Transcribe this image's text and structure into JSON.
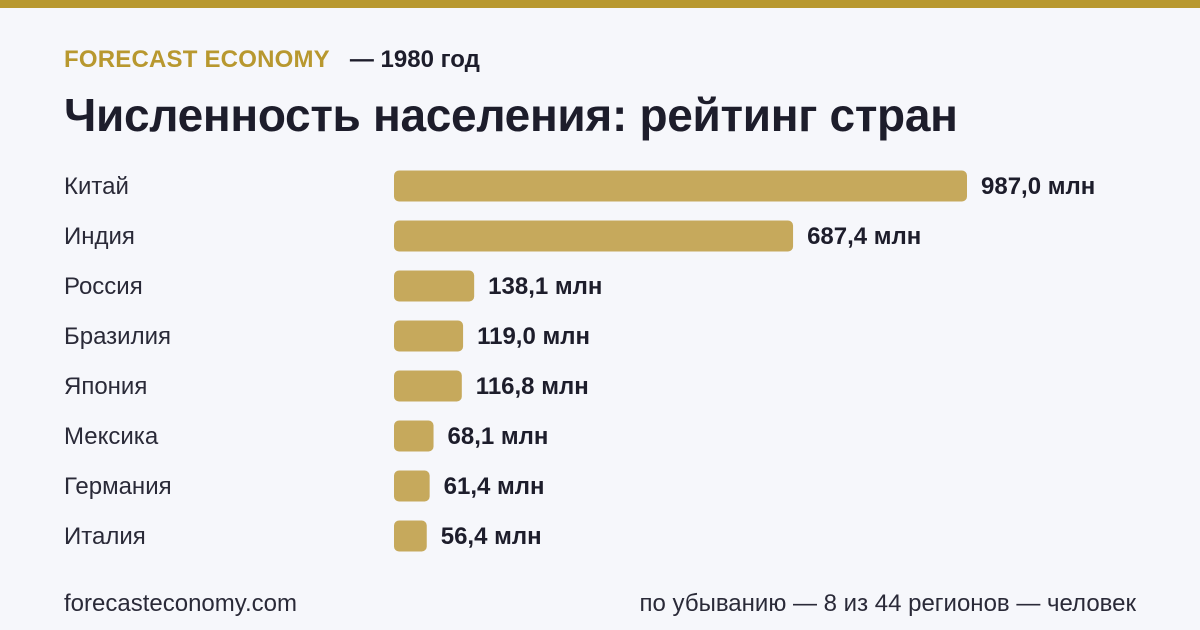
{
  "header": {
    "brand": "FORECAST ECONOMY",
    "year": "— 1980 год",
    "title": "Численность населения: рейтинг стран"
  },
  "colors": {
    "accent": "#b8982f",
    "bar": "#c6a95c",
    "background": "#f6f7fb",
    "text": "#1d1d2b"
  },
  "chart_data": {
    "type": "bar",
    "orientation": "horizontal",
    "title": "Численность населения: рейтинг стран",
    "unit": "млн",
    "categories": [
      "Китай",
      "Индия",
      "Россия",
      "Бразилия",
      "Япония",
      "Мексика",
      "Германия",
      "Италия"
    ],
    "values": [
      987.0,
      687.4,
      138.1,
      119.0,
      116.8,
      68.1,
      61.4,
      56.4
    ],
    "value_labels": [
      "987,0 млн",
      "687,4 млн",
      "138,1 млн",
      "119,0 млн",
      "116,8 млн",
      "68,1 млн",
      "61,4 млн",
      "56,4 млн"
    ],
    "grid": false,
    "legend": "none"
  },
  "footer": {
    "site": "forecasteconomy.com",
    "note": "по убыванию — 8 из 44 регионов — человек"
  }
}
